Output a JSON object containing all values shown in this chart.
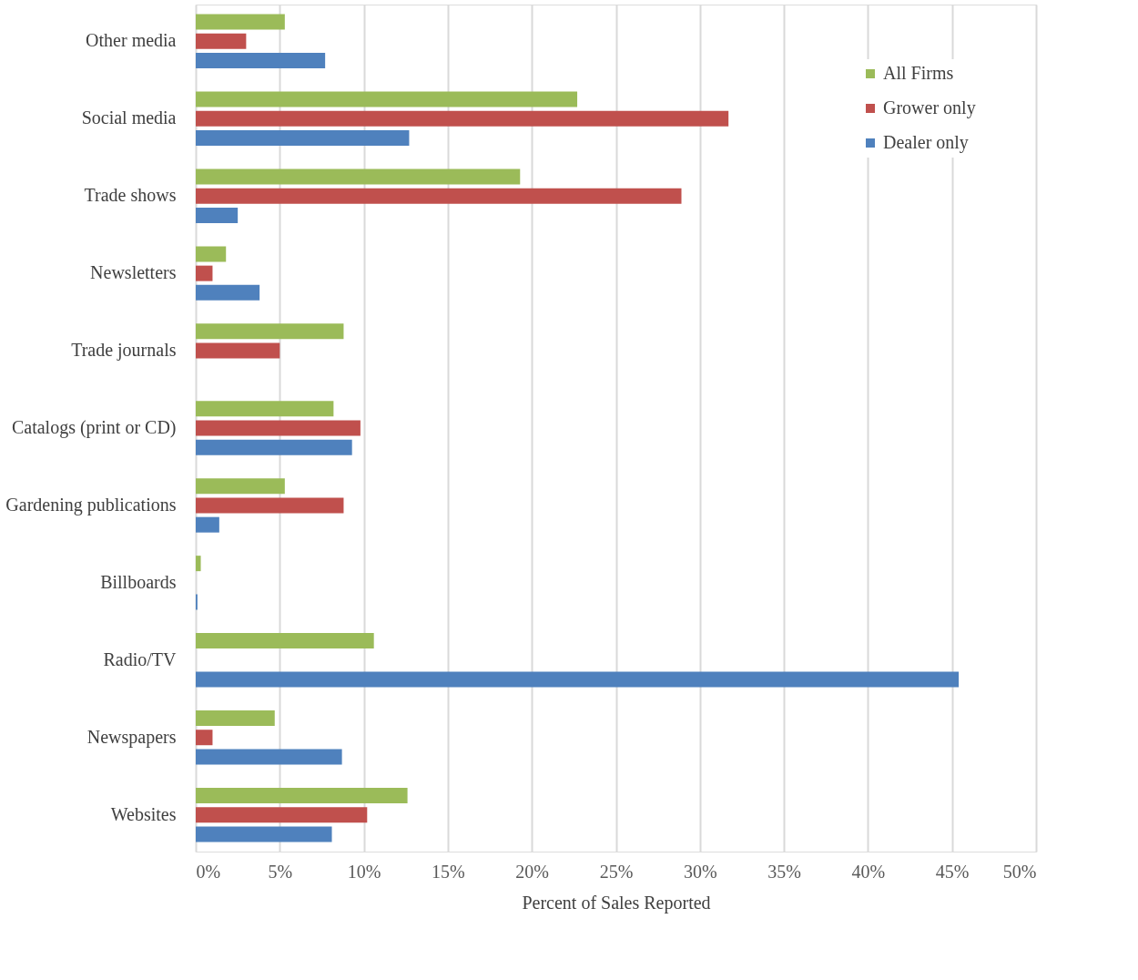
{
  "chart_data": {
    "type": "bar",
    "orientation": "horizontal",
    "xlabel": "Percent of Sales Reported",
    "categories": [
      "Other media",
      "Social media",
      "Trade shows",
      "Newsletters",
      "Trade journals",
      "Catalogs (print or CD)",
      "Gardening publications",
      "Billboards",
      "Radio/TV",
      "Newspapers",
      "Websites"
    ],
    "series": [
      {
        "name": "All Firms",
        "color": "#9bbb59",
        "values": [
          5.3,
          22.7,
          19.3,
          1.8,
          8.8,
          8.2,
          5.3,
          0.3,
          10.6,
          4.7,
          12.6
        ]
      },
      {
        "name": "Grower only",
        "color": "#c0504d",
        "values": [
          3.0,
          31.7,
          28.9,
          1.0,
          5.0,
          9.8,
          8.8,
          0.0,
          0.0,
          1.0,
          10.2
        ]
      },
      {
        "name": "Dealer only",
        "color": "#4f81bd",
        "values": [
          7.7,
          12.7,
          2.5,
          3.8,
          0.0,
          9.3,
          1.4,
          0.1,
          45.4,
          8.7,
          8.1
        ]
      }
    ],
    "xlim": [
      0,
      50
    ],
    "xticks": [
      {
        "value": 0,
        "label": "0%"
      },
      {
        "value": 5,
        "label": "5%"
      },
      {
        "value": 10,
        "label": "10%"
      },
      {
        "value": 15,
        "label": "15%"
      },
      {
        "value": 20,
        "label": "20%"
      },
      {
        "value": 25,
        "label": "25%"
      },
      {
        "value": 30,
        "label": "30%"
      },
      {
        "value": 35,
        "label": "35%"
      },
      {
        "value": 40,
        "label": "40%"
      },
      {
        "value": 45,
        "label": "45%"
      },
      {
        "value": 50,
        "label": "50%"
      }
    ],
    "grid": "x",
    "legend": "top right"
  }
}
